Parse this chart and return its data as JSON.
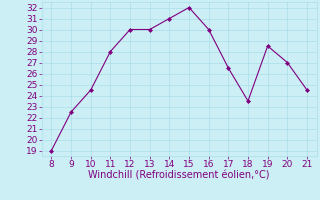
{
  "x": [
    8,
    9,
    10,
    11,
    12,
    13,
    14,
    15,
    16,
    17,
    18,
    19,
    20,
    21
  ],
  "y": [
    19,
    22.5,
    24.5,
    28,
    30,
    30,
    31,
    32,
    30,
    26.5,
    23.5,
    28.5,
    27,
    24.5
  ],
  "xlim": [
    7.5,
    21.5
  ],
  "ylim": [
    18.5,
    32.5
  ],
  "xticks": [
    8,
    9,
    10,
    11,
    12,
    13,
    14,
    15,
    16,
    17,
    18,
    19,
    20,
    21
  ],
  "yticks": [
    19,
    20,
    21,
    22,
    23,
    24,
    25,
    26,
    27,
    28,
    29,
    30,
    31,
    32
  ],
  "xlabel": "Windchill (Refroidissement éolien,°C)",
  "line_color": "#800080",
  "marker": "D",
  "marker_size": 2,
  "bg_color": "#cceef5",
  "grid_color": "#aaddea",
  "tick_color": "#800080",
  "label_color": "#800080",
  "font_size": 6.5,
  "xlabel_fontsize": 7
}
